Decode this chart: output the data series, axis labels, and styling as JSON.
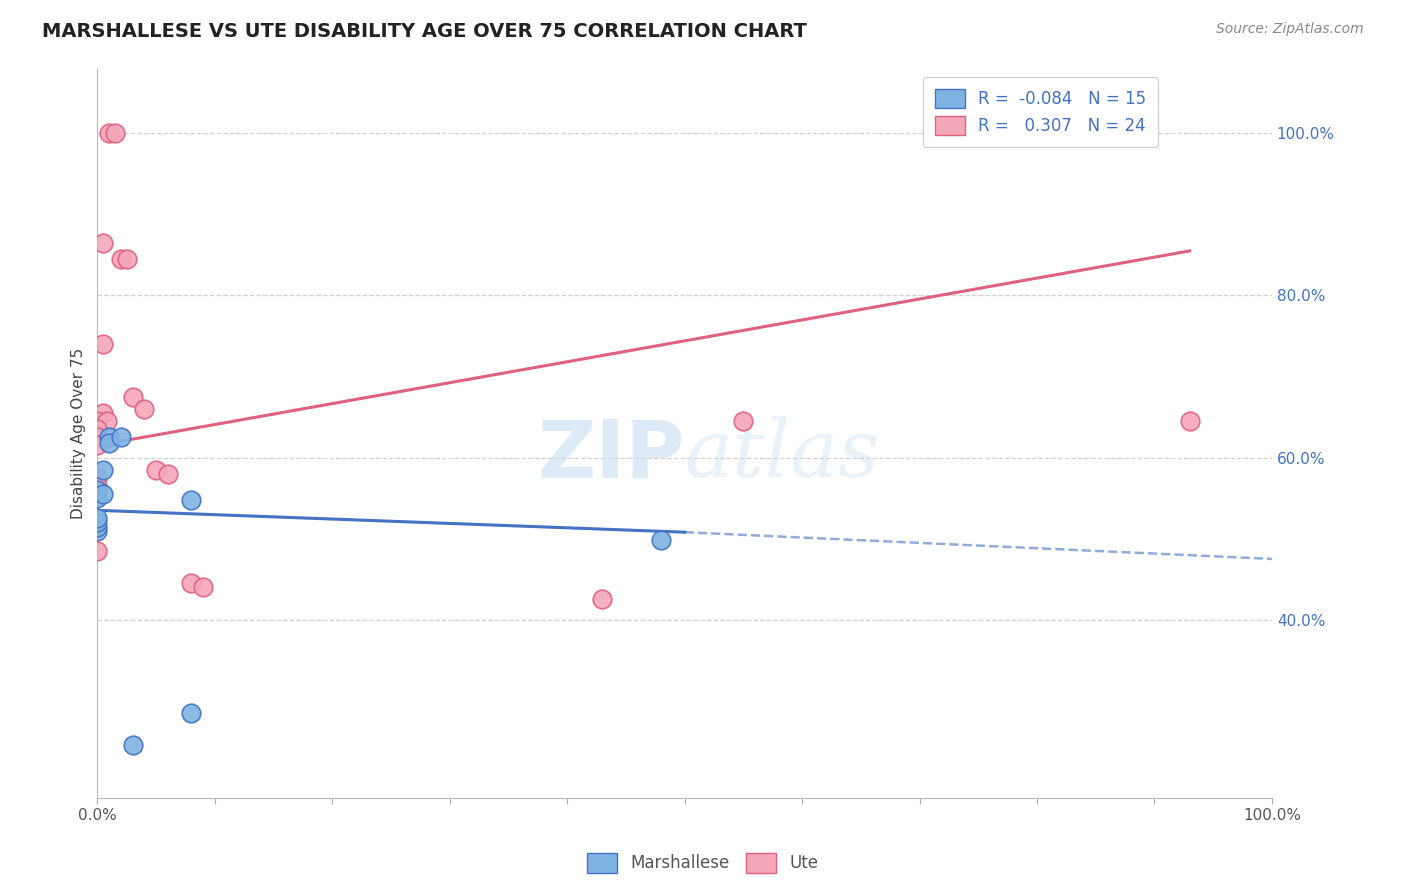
{
  "title": "MARSHALLESE VS UTE DISABILITY AGE OVER 75 CORRELATION CHART",
  "source_text": "Source: ZipAtlas.com",
  "ylabel": "Disability Age Over 75",
  "marshallese_points": [
    [
      0.0,
      0.51
    ],
    [
      0.0,
      0.515
    ],
    [
      0.0,
      0.52
    ],
    [
      0.0,
      0.525
    ],
    [
      0.0,
      0.55
    ],
    [
      0.0,
      0.56
    ],
    [
      0.005,
      0.585
    ],
    [
      0.005,
      0.555
    ],
    [
      0.01,
      0.625
    ],
    [
      0.01,
      0.618
    ],
    [
      0.02,
      0.625
    ],
    [
      0.08,
      0.548
    ],
    [
      0.48,
      0.498
    ],
    [
      0.08,
      0.285
    ],
    [
      0.03,
      0.245
    ]
  ],
  "ute_points": [
    [
      0.01,
      1.0
    ],
    [
      0.015,
      1.0
    ],
    [
      0.005,
      0.865
    ],
    [
      0.02,
      0.845
    ],
    [
      0.025,
      0.845
    ],
    [
      0.005,
      0.74
    ],
    [
      0.005,
      0.655
    ],
    [
      0.0,
      0.645
    ],
    [
      0.008,
      0.645
    ],
    [
      0.0,
      0.635
    ],
    [
      0.0,
      0.625
    ],
    [
      0.0,
      0.615
    ],
    [
      0.03,
      0.675
    ],
    [
      0.04,
      0.66
    ],
    [
      0.0,
      0.575
    ],
    [
      0.0,
      0.565
    ],
    [
      0.05,
      0.585
    ],
    [
      0.06,
      0.58
    ],
    [
      0.0,
      0.485
    ],
    [
      0.08,
      0.445
    ],
    [
      0.09,
      0.44
    ],
    [
      0.43,
      0.425
    ],
    [
      0.55,
      0.645
    ],
    [
      0.93,
      0.645
    ]
  ],
  "marshallese_line_solid": {
    "x0": 0.0,
    "y0": 0.535,
    "x1": 0.5,
    "y1": 0.508
  },
  "marshallese_line_dashed": {
    "x0": 0.5,
    "y0": 0.508,
    "x1": 1.0,
    "y1": 0.475
  },
  "ute_line": {
    "x0": 0.0,
    "y0": 0.615,
    "x1": 0.93,
    "y1": 0.855
  },
  "marshallese_color": "#7fb3e3",
  "ute_color": "#f4a7b9",
  "marshallese_line_color": "#4472c4",
  "ute_line_color": "#e06080",
  "background_color": "#ffffff",
  "grid_color": "#d0d0d0",
  "watermark_color": "#c8dff0",
  "xlim": [
    0.0,
    1.0
  ],
  "ylim": [
    0.18,
    1.08
  ],
  "right_yticks": [
    0.4,
    0.6,
    0.8,
    1.0
  ],
  "right_yticklabels": [
    "40.0%",
    "60.0%",
    "80.0%",
    "100.0%"
  ],
  "xtick_positions": [
    0.0,
    0.1,
    0.2,
    0.3,
    0.4,
    0.5,
    0.6,
    0.7,
    0.8,
    0.9,
    1.0
  ],
  "legend_r1": "R =  -0.084   N = 15",
  "legend_r2": "R =   0.307   N = 24"
}
